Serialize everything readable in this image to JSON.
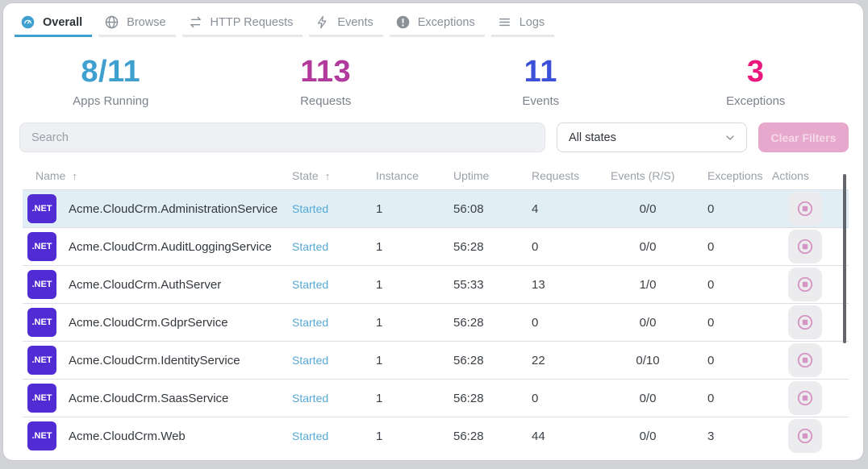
{
  "theme": {
    "accent_blue": "#3fa0d0",
    "net_badge_purple": "#512bd4",
    "started_state_color": "#55a9d4",
    "selected_row_bg": "#e1eef6",
    "clear_button_pink": "#e6a8cc"
  },
  "tabs": [
    {
      "label": "Overall",
      "icon": "gauge-icon",
      "active": true
    },
    {
      "label": "Browse",
      "icon": "globe-icon",
      "active": false
    },
    {
      "label": "HTTP Requests",
      "icon": "swap-arrows-icon",
      "active": false
    },
    {
      "label": "Events",
      "icon": "lightning-icon",
      "active": false
    },
    {
      "label": "Exceptions",
      "icon": "exclamation-circle-icon",
      "active": false
    },
    {
      "label": "Logs",
      "icon": "menu-lines-icon",
      "active": false
    }
  ],
  "stats": [
    {
      "value": "8/11",
      "label": "Apps Running",
      "color": "#3fa0d0"
    },
    {
      "value": "113",
      "label": "Requests",
      "color": "#b13a9c"
    },
    {
      "value": "11",
      "label": "Events",
      "color": "#3c50d8"
    },
    {
      "value": "3",
      "label": "Exceptions",
      "color": "#ea187e"
    }
  ],
  "filters": {
    "search_placeholder": "Search",
    "state_filter_value": "All states",
    "clear_button_label": "Clear Filters"
  },
  "table": {
    "columns": [
      {
        "label": "Name",
        "sorted": true
      },
      {
        "label": "State",
        "sorted": true
      },
      {
        "label": "Instance",
        "sorted": false
      },
      {
        "label": "Uptime",
        "sorted": false
      },
      {
        "label": "Requests",
        "sorted": false
      },
      {
        "label": "Events (R/S)",
        "sorted": false
      },
      {
        "label": "Exceptions",
        "sorted": false
      },
      {
        "label": "Actions",
        "sorted": false
      }
    ],
    "rows": [
      {
        "badge": ".NET",
        "name": "Acme.CloudCrm.AdministrationService",
        "state": "Started",
        "instance": "1",
        "uptime": "56:08",
        "requests": "4",
        "events": "0/0",
        "exceptions": "0",
        "selected": true
      },
      {
        "badge": ".NET",
        "name": "Acme.CloudCrm.AuditLoggingService",
        "state": "Started",
        "instance": "1",
        "uptime": "56:28",
        "requests": "0",
        "events": "0/0",
        "exceptions": "0",
        "selected": false
      },
      {
        "badge": ".NET",
        "name": "Acme.CloudCrm.AuthServer",
        "state": "Started",
        "instance": "1",
        "uptime": "55:33",
        "requests": "13",
        "events": "1/0",
        "exceptions": "0",
        "selected": false
      },
      {
        "badge": ".NET",
        "name": "Acme.CloudCrm.GdprService",
        "state": "Started",
        "instance": "1",
        "uptime": "56:28",
        "requests": "0",
        "events": "0/0",
        "exceptions": "0",
        "selected": false
      },
      {
        "badge": ".NET",
        "name": "Acme.CloudCrm.IdentityService",
        "state": "Started",
        "instance": "1",
        "uptime": "56:28",
        "requests": "22",
        "events": "0/10",
        "exceptions": "0",
        "selected": false
      },
      {
        "badge": ".NET",
        "name": "Acme.CloudCrm.SaasService",
        "state": "Started",
        "instance": "1",
        "uptime": "56:28",
        "requests": "0",
        "events": "0/0",
        "exceptions": "0",
        "selected": false
      },
      {
        "badge": ".NET",
        "name": "Acme.CloudCrm.Web",
        "state": "Started",
        "instance": "1",
        "uptime": "56:28",
        "requests": "44",
        "events": "0/0",
        "exceptions": "3",
        "selected": false
      }
    ]
  }
}
